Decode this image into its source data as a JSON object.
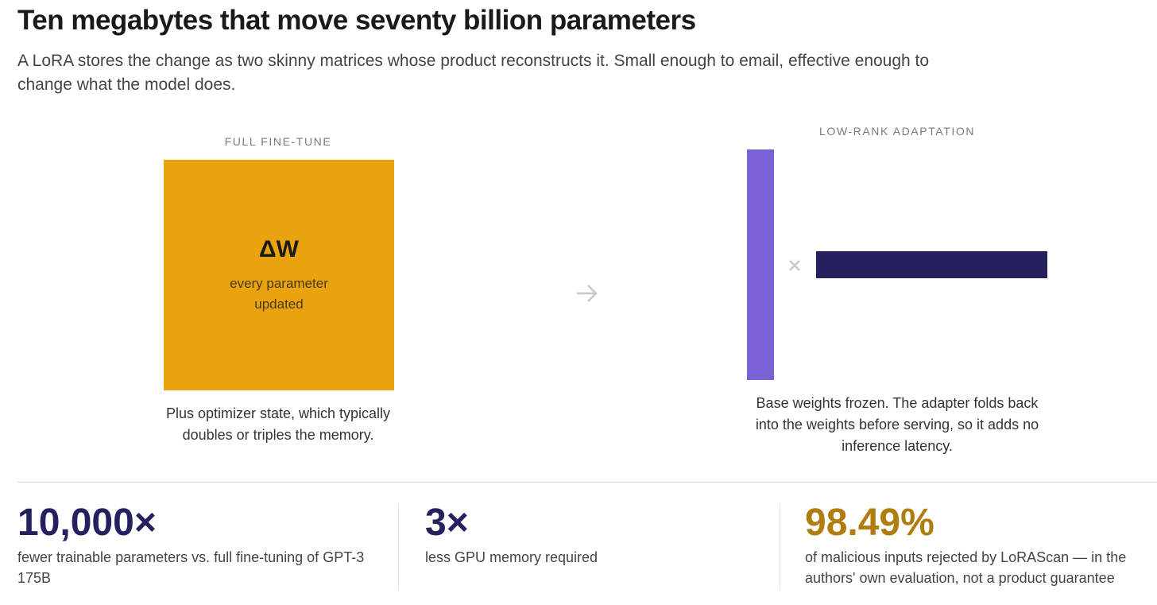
{
  "header": {
    "title": "Ten megabytes that move seventy billion parameters",
    "subtitle": "A LoRA stores the change as two skinny matrices whose product reconstructs it. Small enough to email, effective enough to change what the model does."
  },
  "full_finetune": {
    "label": "FULL FINE-TUNE",
    "matrix_symbol": "ΔW",
    "matrix_note": "every parameter updated",
    "caption": "Plus optimizer state, which typically doubles or triples the memory."
  },
  "lora": {
    "label": "LOW-RANK ADAPTATION",
    "caption": "Base weights frozen. The adapter folds back into the weights before serving, so it adds no inference latency."
  },
  "stats": [
    {
      "value": "10,000×",
      "text": "fewer trainable parameters vs. full fine-tuning of GPT-3 175B"
    },
    {
      "value": "3×",
      "text": "less GPU memory required"
    },
    {
      "value": "98.49%",
      "text": "of malicious inputs rejected by LoRAScan — in the authors' own evaluation, not a product guarantee"
    }
  ]
}
